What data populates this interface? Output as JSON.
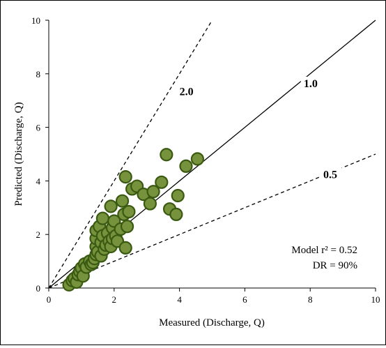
{
  "chart_data": {
    "type": "scatter",
    "xlabel": "Measured (Discharge, Q)",
    "ylabel": "Predicted (Discharge, Q)",
    "xlim": [
      0,
      10
    ],
    "ylim": [
      0,
      10
    ],
    "xticks": [
      "0",
      "2",
      "4",
      "6",
      "8",
      "10"
    ],
    "yticks": [
      "0",
      "2",
      "4",
      "6",
      "8",
      "10"
    ],
    "grid": false,
    "reference_lines": [
      {
        "label": "2.0",
        "slope": 2.0,
        "style": "dashed",
        "label_x": 4.0,
        "label_y": 7.2
      },
      {
        "label": "1.0",
        "slope": 1.0,
        "style": "solid",
        "label_x": 7.8,
        "label_y": 7.5
      },
      {
        "label": "0.5",
        "slope": 0.5,
        "style": "dashed",
        "label_x": 8.4,
        "label_y": 4.1
      }
    ],
    "annotations": [
      {
        "text": "Model r² = 0.52"
      },
      {
        "text": "DR = 90%"
      }
    ],
    "marker": {
      "fill": "#76923c",
      "edge": "#3a5a12",
      "style": "circle"
    },
    "points": [
      [
        0.62,
        0.12
      ],
      [
        0.72,
        0.28
      ],
      [
        0.78,
        0.36
      ],
      [
        0.85,
        0.22
      ],
      [
        0.9,
        0.5
      ],
      [
        0.95,
        0.62
      ],
      [
        1.0,
        0.75
      ],
      [
        1.05,
        0.45
      ],
      [
        1.1,
        0.9
      ],
      [
        1.15,
        0.78
      ],
      [
        1.25,
        1.0
      ],
      [
        1.3,
        0.88
      ],
      [
        1.35,
        0.95
      ],
      [
        1.4,
        1.1
      ],
      [
        1.45,
        1.25
      ],
      [
        1.45,
        1.55
      ],
      [
        1.45,
        1.85
      ],
      [
        1.45,
        2.15
      ],
      [
        1.5,
        1.35
      ],
      [
        1.55,
        2.3
      ],
      [
        1.6,
        1.2
      ],
      [
        1.6,
        1.7
      ],
      [
        1.65,
        1.95
      ],
      [
        1.65,
        2.6
      ],
      [
        1.7,
        1.45
      ],
      [
        1.75,
        1.6
      ],
      [
        1.8,
        2.05
      ],
      [
        1.85,
        1.75
      ],
      [
        1.9,
        1.55
      ],
      [
        1.95,
        1.85
      ],
      [
        1.95,
        2.25
      ],
      [
        1.9,
        3.05
      ],
      [
        2.0,
        2.5
      ],
      [
        2.05,
        1.95
      ],
      [
        2.1,
        1.75
      ],
      [
        2.2,
        2.2
      ],
      [
        2.25,
        3.25
      ],
      [
        2.3,
        2.75
      ],
      [
        2.35,
        1.5
      ],
      [
        2.4,
        2.3
      ],
      [
        2.45,
        2.85
      ],
      [
        2.35,
        4.15
      ],
      [
        2.55,
        3.7
      ],
      [
        2.7,
        3.8
      ],
      [
        2.9,
        3.5
      ],
      [
        3.1,
        3.15
      ],
      [
        3.2,
        3.6
      ],
      [
        3.45,
        3.95
      ],
      [
        3.6,
        4.98
      ],
      [
        3.7,
        2.95
      ],
      [
        3.9,
        2.75
      ],
      [
        3.95,
        3.45
      ],
      [
        4.2,
        4.55
      ],
      [
        4.55,
        4.82
      ]
    ]
  }
}
